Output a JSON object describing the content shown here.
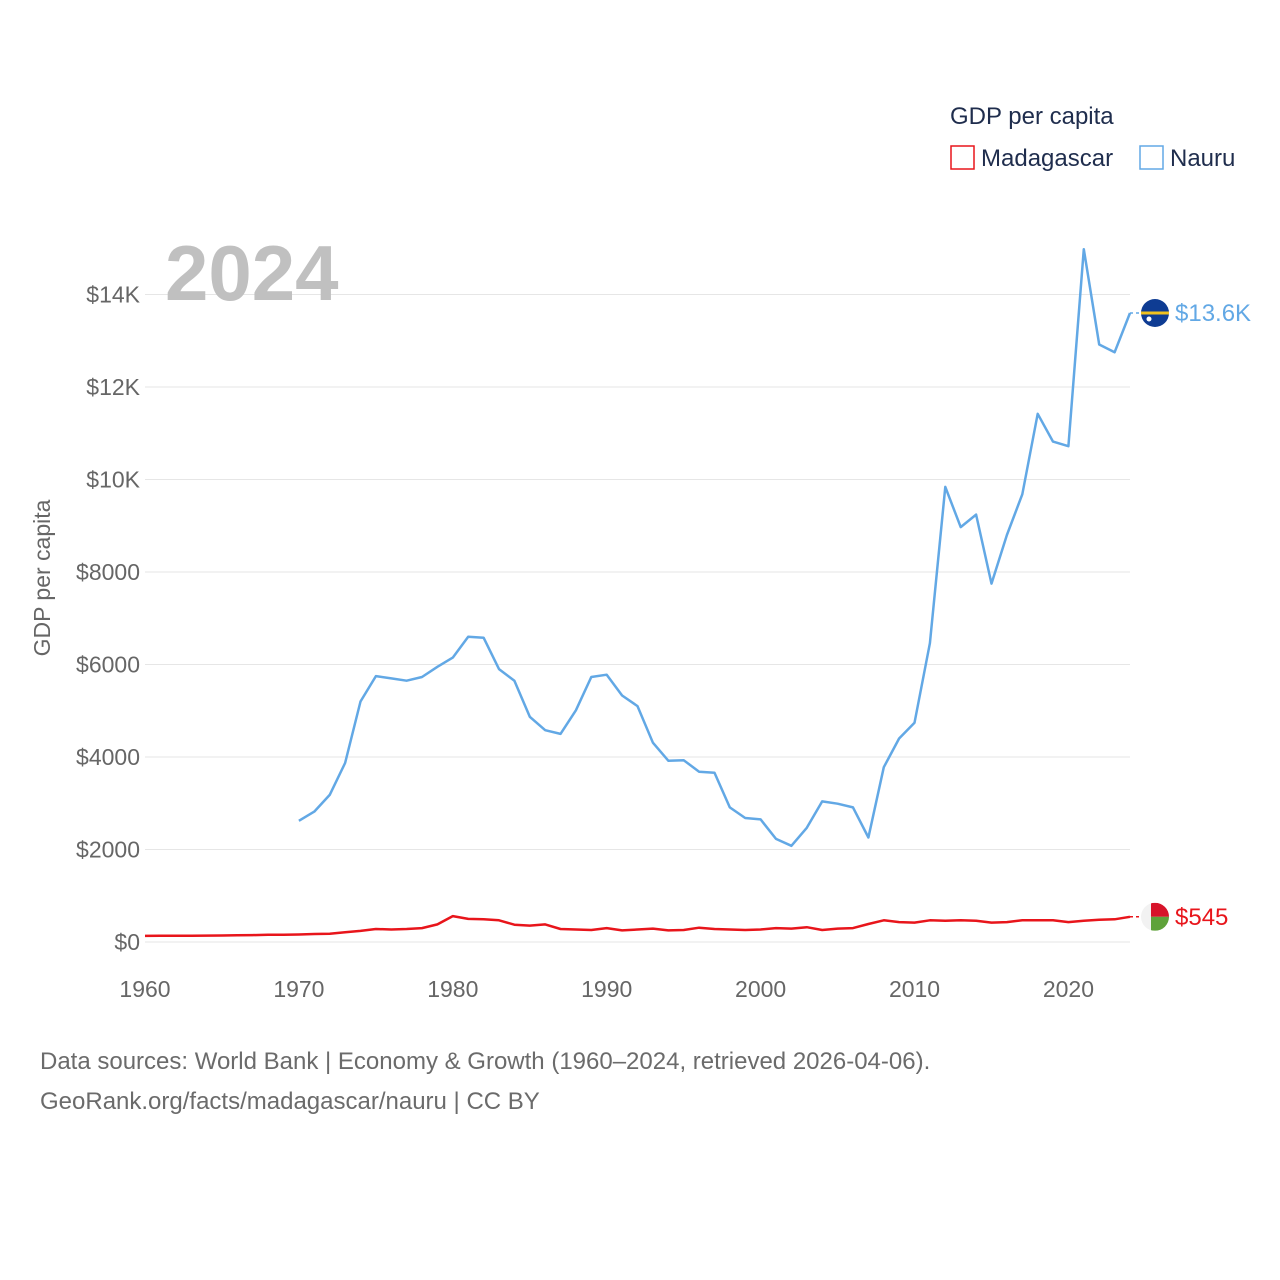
{
  "chart_data": {
    "type": "line",
    "title": "GDP per capita",
    "ylabel": "GDP per capita",
    "xlabel": "",
    "current_year_label": "2024",
    "xlim": [
      1960,
      2024
    ],
    "ylim": [
      0,
      15000
    ],
    "x_ticks": [
      1960,
      1970,
      1980,
      1990,
      2000,
      2010,
      2020
    ],
    "x_tick_labels": [
      "1960",
      "1970",
      "1980",
      "1990",
      "2000",
      "2010",
      "2020"
    ],
    "y_ticks": [
      0,
      2000,
      4000,
      6000,
      8000,
      10000,
      12000,
      14000
    ],
    "y_tick_labels": [
      "$0",
      "$2000",
      "$4000",
      "$6000",
      "$8000",
      "$10K",
      "$12K",
      "$14K"
    ],
    "legend": {
      "title": "GDP per capita",
      "position": "top-right"
    },
    "series": [
      {
        "name": "Madagascar",
        "color": "#e8151b",
        "end_label": "$545",
        "flag_icon": "madagascar-flag-icon",
        "x": [
          1960,
          1961,
          1962,
          1963,
          1964,
          1965,
          1966,
          1967,
          1968,
          1969,
          1970,
          1971,
          1972,
          1973,
          1974,
          1975,
          1976,
          1977,
          1978,
          1979,
          1980,
          1981,
          1982,
          1983,
          1984,
          1985,
          1986,
          1987,
          1988,
          1989,
          1990,
          1991,
          1992,
          1993,
          1994,
          1995,
          1996,
          1997,
          1998,
          1999,
          2000,
          2001,
          2002,
          2003,
          2004,
          2005,
          2006,
          2007,
          2008,
          2009,
          2010,
          2011,
          2012,
          2013,
          2014,
          2015,
          2016,
          2017,
          2018,
          2019,
          2020,
          2021,
          2022,
          2023,
          2024
        ],
        "values": [
          131,
          133,
          135,
          136,
          138,
          140,
          145,
          150,
          155,
          158,
          163,
          172,
          180,
          210,
          240,
          280,
          270,
          280,
          300,
          380,
          560,
          500,
          490,
          470,
          375,
          355,
          380,
          280,
          270,
          260,
          300,
          250,
          270,
          290,
          250,
          260,
          310,
          280,
          270,
          260,
          270,
          300,
          290,
          320,
          260,
          290,
          300,
          390,
          470,
          430,
          420,
          470,
          460,
          470,
          460,
          420,
          430,
          470,
          470,
          470,
          430,
          460,
          480,
          490,
          545
        ]
      },
      {
        "name": "Nauru",
        "color": "#62a8e5",
        "end_label": "$13.6K",
        "flag_icon": "nauru-flag-icon",
        "x": [
          1970,
          1971,
          1972,
          1973,
          1974,
          1975,
          1976,
          1977,
          1978,
          1979,
          1980,
          1981,
          1982,
          1983,
          1984,
          1985,
          1986,
          1987,
          1988,
          1989,
          1990,
          1991,
          1992,
          1993,
          1994,
          1995,
          1996,
          1997,
          1998,
          1999,
          2000,
          2001,
          2002,
          2003,
          2004,
          2005,
          2006,
          2007,
          2008,
          2009,
          2010,
          2011,
          2012,
          2013,
          2014,
          2015,
          2016,
          2017,
          2018,
          2019,
          2020,
          2021,
          2022,
          2023,
          2024
        ],
        "values": [
          2620,
          2820,
          3180,
          3870,
          5200,
          5750,
          5700,
          5650,
          5730,
          5950,
          6150,
          6600,
          6580,
          5900,
          5650,
          4870,
          4580,
          4500,
          5010,
          5730,
          5780,
          5330,
          5100,
          4310,
          3920,
          3930,
          3680,
          3660,
          2910,
          2680,
          2650,
          2230,
          2080,
          2470,
          3040,
          2990,
          2910,
          2260,
          3780,
          4400,
          4740,
          6460,
          9840,
          8970,
          9240,
          7750,
          8800,
          9680,
          11420,
          10820,
          10720,
          14980,
          12920,
          12750,
          13600
        ]
      }
    ]
  },
  "source": {
    "line1": "Data sources: World Bank | Economy & Growth (1960–2024, retrieved 2026-04-06).",
    "line2": "GeoRank.org/facts/madagascar/nauru | CC BY"
  }
}
